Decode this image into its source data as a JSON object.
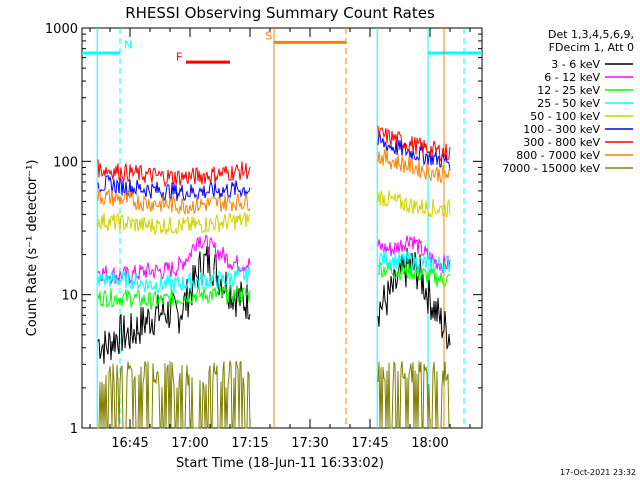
{
  "chart_data": {
    "type": "line",
    "title": "RHESSI Observing Summary Count Rates",
    "xlabel": "Start Time (18-Jun-11 16:33:02)",
    "ylabel": "Count Rate (s⁻¹ detector⁻¹)",
    "yscale": "log",
    "ylim": [
      1,
      1000
    ],
    "xlim_minutes": [
      0,
      100
    ],
    "x_ticks": [
      {
        "label": "16:45",
        "min": 12
      },
      {
        "label": "17:00",
        "min": 27
      },
      {
        "label": "17:15",
        "min": 42
      },
      {
        "label": "17:30",
        "min": 57
      },
      {
        "label": "17:45",
        "min": 72
      },
      {
        "label": "18:00",
        "min": 87
      }
    ],
    "y_ticks": [
      {
        "label": "1",
        "value": 1
      },
      {
        "label": "10",
        "value": 10
      },
      {
        "label": "100",
        "value": 100
      },
      {
        "label": "1000",
        "value": 1000
      }
    ],
    "legend_header": [
      "Det 1,3,4,5,6,9,",
      "FDecim 1, Att 0"
    ],
    "legend_placement": "right",
    "timestamp": "17-Oct-2021 23:32",
    "series": [
      {
        "name": "3 - 6 keV",
        "color": "#000000",
        "seg1": [
          [
            4,
            4.5
          ],
          [
            6,
            4
          ],
          [
            9,
            5
          ],
          [
            12,
            5
          ],
          [
            15,
            6
          ],
          [
            18,
            7
          ],
          [
            21,
            7.5
          ],
          [
            24,
            7
          ],
          [
            26,
            9
          ],
          [
            28,
            12
          ],
          [
            30,
            17
          ],
          [
            32,
            18
          ],
          [
            34,
            14
          ],
          [
            36,
            12
          ],
          [
            38,
            10
          ],
          [
            40,
            9
          ],
          [
            42,
            9
          ]
        ],
        "seg2": [
          [
            74,
            8
          ],
          [
            76,
            9
          ],
          [
            78,
            11
          ],
          [
            80,
            14
          ],
          [
            82,
            17
          ],
          [
            84,
            15
          ],
          [
            86,
            11
          ],
          [
            88,
            8
          ],
          [
            90,
            6
          ],
          [
            92,
            5
          ]
        ]
      },
      {
        "name": "6 - 12 keV",
        "color": "#ff00ff",
        "seg1": [
          [
            4,
            15
          ],
          [
            8,
            14
          ],
          [
            12,
            14
          ],
          [
            16,
            15
          ],
          [
            20,
            15
          ],
          [
            24,
            16
          ],
          [
            27,
            20
          ],
          [
            29,
            27
          ],
          [
            31,
            24
          ],
          [
            33,
            22
          ],
          [
            35,
            20
          ],
          [
            37,
            18
          ],
          [
            39,
            17
          ],
          [
            42,
            17
          ]
        ],
        "seg2": [
          [
            74,
            23
          ],
          [
            76,
            22
          ],
          [
            78,
            22
          ],
          [
            80,
            24
          ],
          [
            82,
            27
          ],
          [
            84,
            23
          ],
          [
            86,
            20
          ],
          [
            88,
            18
          ],
          [
            90,
            17
          ],
          [
            92,
            17
          ]
        ]
      },
      {
        "name": "12 - 25 keV",
        "color": "#00ff00",
        "seg1": [
          [
            4,
            9.5
          ],
          [
            8,
            9.5
          ],
          [
            12,
            9.5
          ],
          [
            16,
            9
          ],
          [
            20,
            9
          ],
          [
            24,
            9.5
          ],
          [
            28,
            10
          ],
          [
            32,
            10
          ],
          [
            36,
            10
          ],
          [
            40,
            10
          ],
          [
            42,
            10
          ]
        ],
        "seg2": [
          [
            74,
            16
          ],
          [
            78,
            15
          ],
          [
            82,
            15
          ],
          [
            86,
            14
          ],
          [
            90,
            13
          ],
          [
            92,
            13
          ]
        ]
      },
      {
        "name": "25 - 50 keV",
        "color": "#00ffff",
        "seg1": [
          [
            4,
            13
          ],
          [
            8,
            13
          ],
          [
            12,
            13
          ],
          [
            16,
            12
          ],
          [
            20,
            12
          ],
          [
            24,
            12
          ],
          [
            28,
            12.5
          ],
          [
            32,
            13
          ],
          [
            36,
            13
          ],
          [
            40,
            14
          ],
          [
            42,
            14
          ]
        ],
        "seg2": [
          [
            74,
            19
          ],
          [
            78,
            18
          ],
          [
            82,
            18
          ],
          [
            86,
            17
          ],
          [
            90,
            17
          ],
          [
            92,
            17
          ]
        ]
      },
      {
        "name": "50 - 100 keV",
        "color": "#d2d200",
        "seg1": [
          [
            4,
            36
          ],
          [
            8,
            35
          ],
          [
            12,
            34
          ],
          [
            16,
            33
          ],
          [
            20,
            33
          ],
          [
            24,
            33
          ],
          [
            28,
            33
          ],
          [
            32,
            34
          ],
          [
            36,
            35
          ],
          [
            40,
            36
          ],
          [
            42,
            37
          ]
        ],
        "seg2": [
          [
            74,
            55
          ],
          [
            78,
            50
          ],
          [
            82,
            47
          ],
          [
            86,
            45
          ],
          [
            90,
            44
          ],
          [
            92,
            44
          ]
        ]
      },
      {
        "name": "100 - 300 keV",
        "color": "#0000ff",
        "seg1": [
          [
            4,
            68
          ],
          [
            8,
            66
          ],
          [
            12,
            64
          ],
          [
            16,
            62
          ],
          [
            20,
            60
          ],
          [
            24,
            59
          ],
          [
            28,
            59
          ],
          [
            32,
            60
          ],
          [
            36,
            61
          ],
          [
            40,
            62
          ],
          [
            42,
            62
          ]
        ],
        "seg2": [
          [
            74,
            140
          ],
          [
            78,
            128
          ],
          [
            82,
            118
          ],
          [
            86,
            110
          ],
          [
            90,
            102
          ],
          [
            92,
            100
          ]
        ]
      },
      {
        "name": "300 - 800 keV",
        "color": "#ff0000",
        "seg1": [
          [
            4,
            88
          ],
          [
            8,
            85
          ],
          [
            12,
            82
          ],
          [
            16,
            79
          ],
          [
            20,
            77
          ],
          [
            24,
            76
          ],
          [
            28,
            77
          ],
          [
            32,
            79
          ],
          [
            36,
            82
          ],
          [
            40,
            85
          ],
          [
            42,
            86
          ]
        ],
        "seg2": [
          [
            74,
            160
          ],
          [
            78,
            148
          ],
          [
            82,
            135
          ],
          [
            86,
            125
          ],
          [
            90,
            118
          ],
          [
            92,
            117
          ]
        ]
      },
      {
        "name": "800 - 7000 keV",
        "color": "#ff8000",
        "seg1": [
          [
            4,
            55
          ],
          [
            8,
            53
          ],
          [
            12,
            51
          ],
          [
            16,
            49
          ],
          [
            20,
            48
          ],
          [
            24,
            47
          ],
          [
            28,
            47
          ],
          [
            32,
            48
          ],
          [
            36,
            49
          ],
          [
            40,
            50
          ],
          [
            42,
            50
          ]
        ],
        "seg2": [
          [
            74,
            110
          ],
          [
            78,
            100
          ],
          [
            82,
            92
          ],
          [
            86,
            85
          ],
          [
            90,
            80
          ],
          [
            92,
            78
          ]
        ]
      },
      {
        "name": "7000 - 15000 keV",
        "color": "#808000",
        "seg1": [
          [
            4,
            2
          ],
          [
            42,
            2
          ]
        ],
        "seg2": [
          [
            74,
            2
          ],
          [
            92,
            2
          ]
        ]
      }
    ],
    "annotations": [
      {
        "label": "N",
        "color": "#00ffff",
        "min": 12
      },
      {
        "label": "F",
        "color": "#ff0000",
        "min": 24
      },
      {
        "label": "S",
        "color": "#ff8000",
        "min": 46
      }
    ]
  }
}
